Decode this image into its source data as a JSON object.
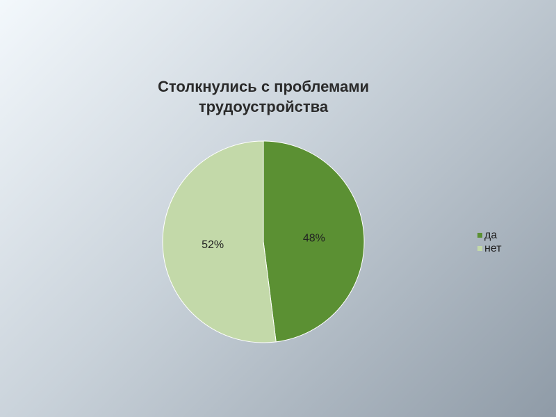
{
  "chart_data": {
    "type": "pie",
    "title": "Столкнулись с проблемами трудоустройства",
    "categories": [
      "да",
      "нет"
    ],
    "values": [
      48,
      52
    ],
    "value_labels": [
      "48%",
      "52%"
    ],
    "colors": [
      "#5b9033",
      "#c3d9a9"
    ],
    "legend": "right"
  }
}
